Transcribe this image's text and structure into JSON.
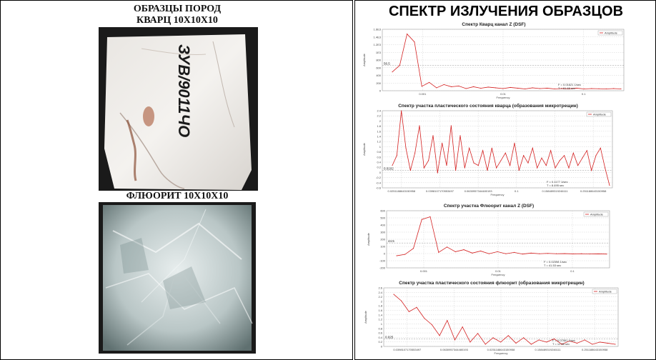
{
  "left": {
    "quartz_title_line1": "ОБРАЗЦЫ ПОРОД",
    "quartz_title_line2": "КВАРЦ 10Х10Х10",
    "quartz_inscription": "ЗУВ/9011ЧО",
    "fluorite_title": "ФЛЮОРИТ 10Х10Х10"
  },
  "right": {
    "main_title": "СПЕКТР ИЗЛУЧЕНИЯ ОБРАЗЦОВ"
  },
  "colors": {
    "series": "#d42020",
    "grid": "#c8c8c8",
    "frame": "#9a9a9a"
  },
  "chart_data": [
    {
      "type": "line",
      "title": "Спектр Кварц канал Z (DSF)",
      "legend": "Amplitude",
      "legend_position": "top-right",
      "ylabel": "Amplitude",
      "xlabel": "Frequency",
      "x_ticks": [
        "0.001",
        "0.01",
        "0.1"
      ],
      "y_ticks": [
        "1.6E3",
        "1.4E3",
        "1.2E3",
        "1E3",
        "800",
        "600",
        "400",
        "200",
        "0"
      ],
      "ylim": [
        0,
        1700
      ],
      "threshold_label": "56.5",
      "threshold_value": 700,
      "cursor_readout": [
        "F = 0.01621 1/sec",
        "T = 61.69 sec"
      ],
      "values": [
        520,
        700,
        1570,
        1350,
        120,
        230,
        80,
        170,
        110,
        130,
        60,
        110,
        70,
        100,
        80,
        60,
        90,
        70,
        50,
        80,
        60,
        70,
        50,
        60,
        55,
        70,
        50,
        60,
        55,
        50,
        60,
        50
      ]
    },
    {
      "type": "line",
      "title": "Спектр участка пластического состояния кварца (образования микротрещин)",
      "legend": "Amplitude",
      "legend_position": "top-right",
      "ylabel": "Amplitude",
      "xlabel": "Frequency",
      "x_ticks": [
        "0.0251188643150958",
        "0.0398107170553497",
        "0.0630957344480193",
        "0.1",
        "0.158489319246111",
        "0.251188643150958"
      ],
      "y_ticks": [
        "2.4",
        "2.2",
        "2",
        "1.8",
        "1.6",
        "1.4",
        "1.2",
        "1",
        "0.8",
        "0.6",
        "0.4",
        "0.2",
        "0",
        "-0.2",
        "-0.4",
        "-0.6"
      ],
      "ylim": [
        -0.6,
        2.5
      ],
      "threshold_label": "0.0102",
      "threshold_value": 0.1,
      "cursor_readout": [
        "F = 0.1177 1/sec",
        "T = 8.495 sec"
      ],
      "values": [
        0.3,
        0.7,
        2.5,
        1.0,
        0.1,
        0.8,
        1.9,
        0.2,
        0.5,
        1.5,
        0.0,
        1.2,
        0.3,
        1.9,
        0.1,
        1.5,
        0.2,
        1.0,
        0.4,
        0.3,
        0.9,
        0.1,
        1.0,
        0.2,
        0.5,
        0.8,
        0.3,
        1.2,
        0.1,
        0.7,
        0.4,
        1.0,
        0.2,
        0.6,
        0.3,
        0.9,
        0.2,
        0.5,
        0.7,
        0.2,
        0.8,
        0.3,
        0.6,
        0.9,
        0.1,
        0.7,
        1.0,
        0.2,
        -0.5
      ]
    },
    {
      "type": "line",
      "title": "Спектр участка Флюорит канал Z (DSF)",
      "legend": "Amplitude",
      "legend_position": "top-right",
      "ylabel": "Amplitude",
      "xlabel": "Frequency",
      "x_ticks": [
        "0.001",
        "0.01",
        "0.1"
      ],
      "y_ticks": [
        "600",
        "500",
        "400",
        "300",
        "200",
        "100",
        "0",
        "-100",
        "-200"
      ],
      "ylim": [
        -200,
        650
      ],
      "threshold_label": "44.5",
      "threshold_value": 170,
      "cursor_readout": [
        "F = 0.02398 1/sec",
        "T = 41.53 sec"
      ],
      "values": [
        -20,
        0,
        90,
        520,
        560,
        30,
        110,
        40,
        70,
        20,
        50,
        10,
        40,
        10,
        30,
        5,
        20,
        10,
        15,
        10,
        12,
        8,
        10,
        6,
        8,
        5
      ]
    },
    {
      "type": "line",
      "title": "Спектр участка пластического состояния флюорит (образования микротрещин)",
      "legend": "Amplitude",
      "legend_position": "top-right",
      "ylabel": "Amplitude",
      "xlabel": "Frequency",
      "x_ticks": [
        "0.0398107170553497",
        "0.0630957344480193",
        "0.0251188643150958",
        "0.158489319246111",
        "0.251188643150958"
      ],
      "y_ticks": [
        "2.6",
        "2.4",
        "2.2",
        "2",
        "1.8",
        "1.6",
        "1.4",
        "1.2",
        "1",
        "0.8",
        "0.6",
        "0.4",
        "0.2",
        "0"
      ],
      "ylim": [
        0,
        2.7
      ],
      "threshold_label": "0.025",
      "threshold_value": 0.35,
      "cursor_readout": [
        "F = 0.07961 1/sec",
        "T = 12.56 sec"
      ],
      "values": [
        2.4,
        2.1,
        1.6,
        1.8,
        1.3,
        1.0,
        0.5,
        1.2,
        0.3,
        0.9,
        0.2,
        0.6,
        0.1,
        0.4,
        0.2,
        0.5,
        0.15,
        0.4,
        0.1,
        0.3,
        0.2,
        0.35,
        0.1,
        0.25,
        0.15,
        0.3,
        0.1,
        0.2,
        0.15,
        0.1
      ]
    }
  ]
}
